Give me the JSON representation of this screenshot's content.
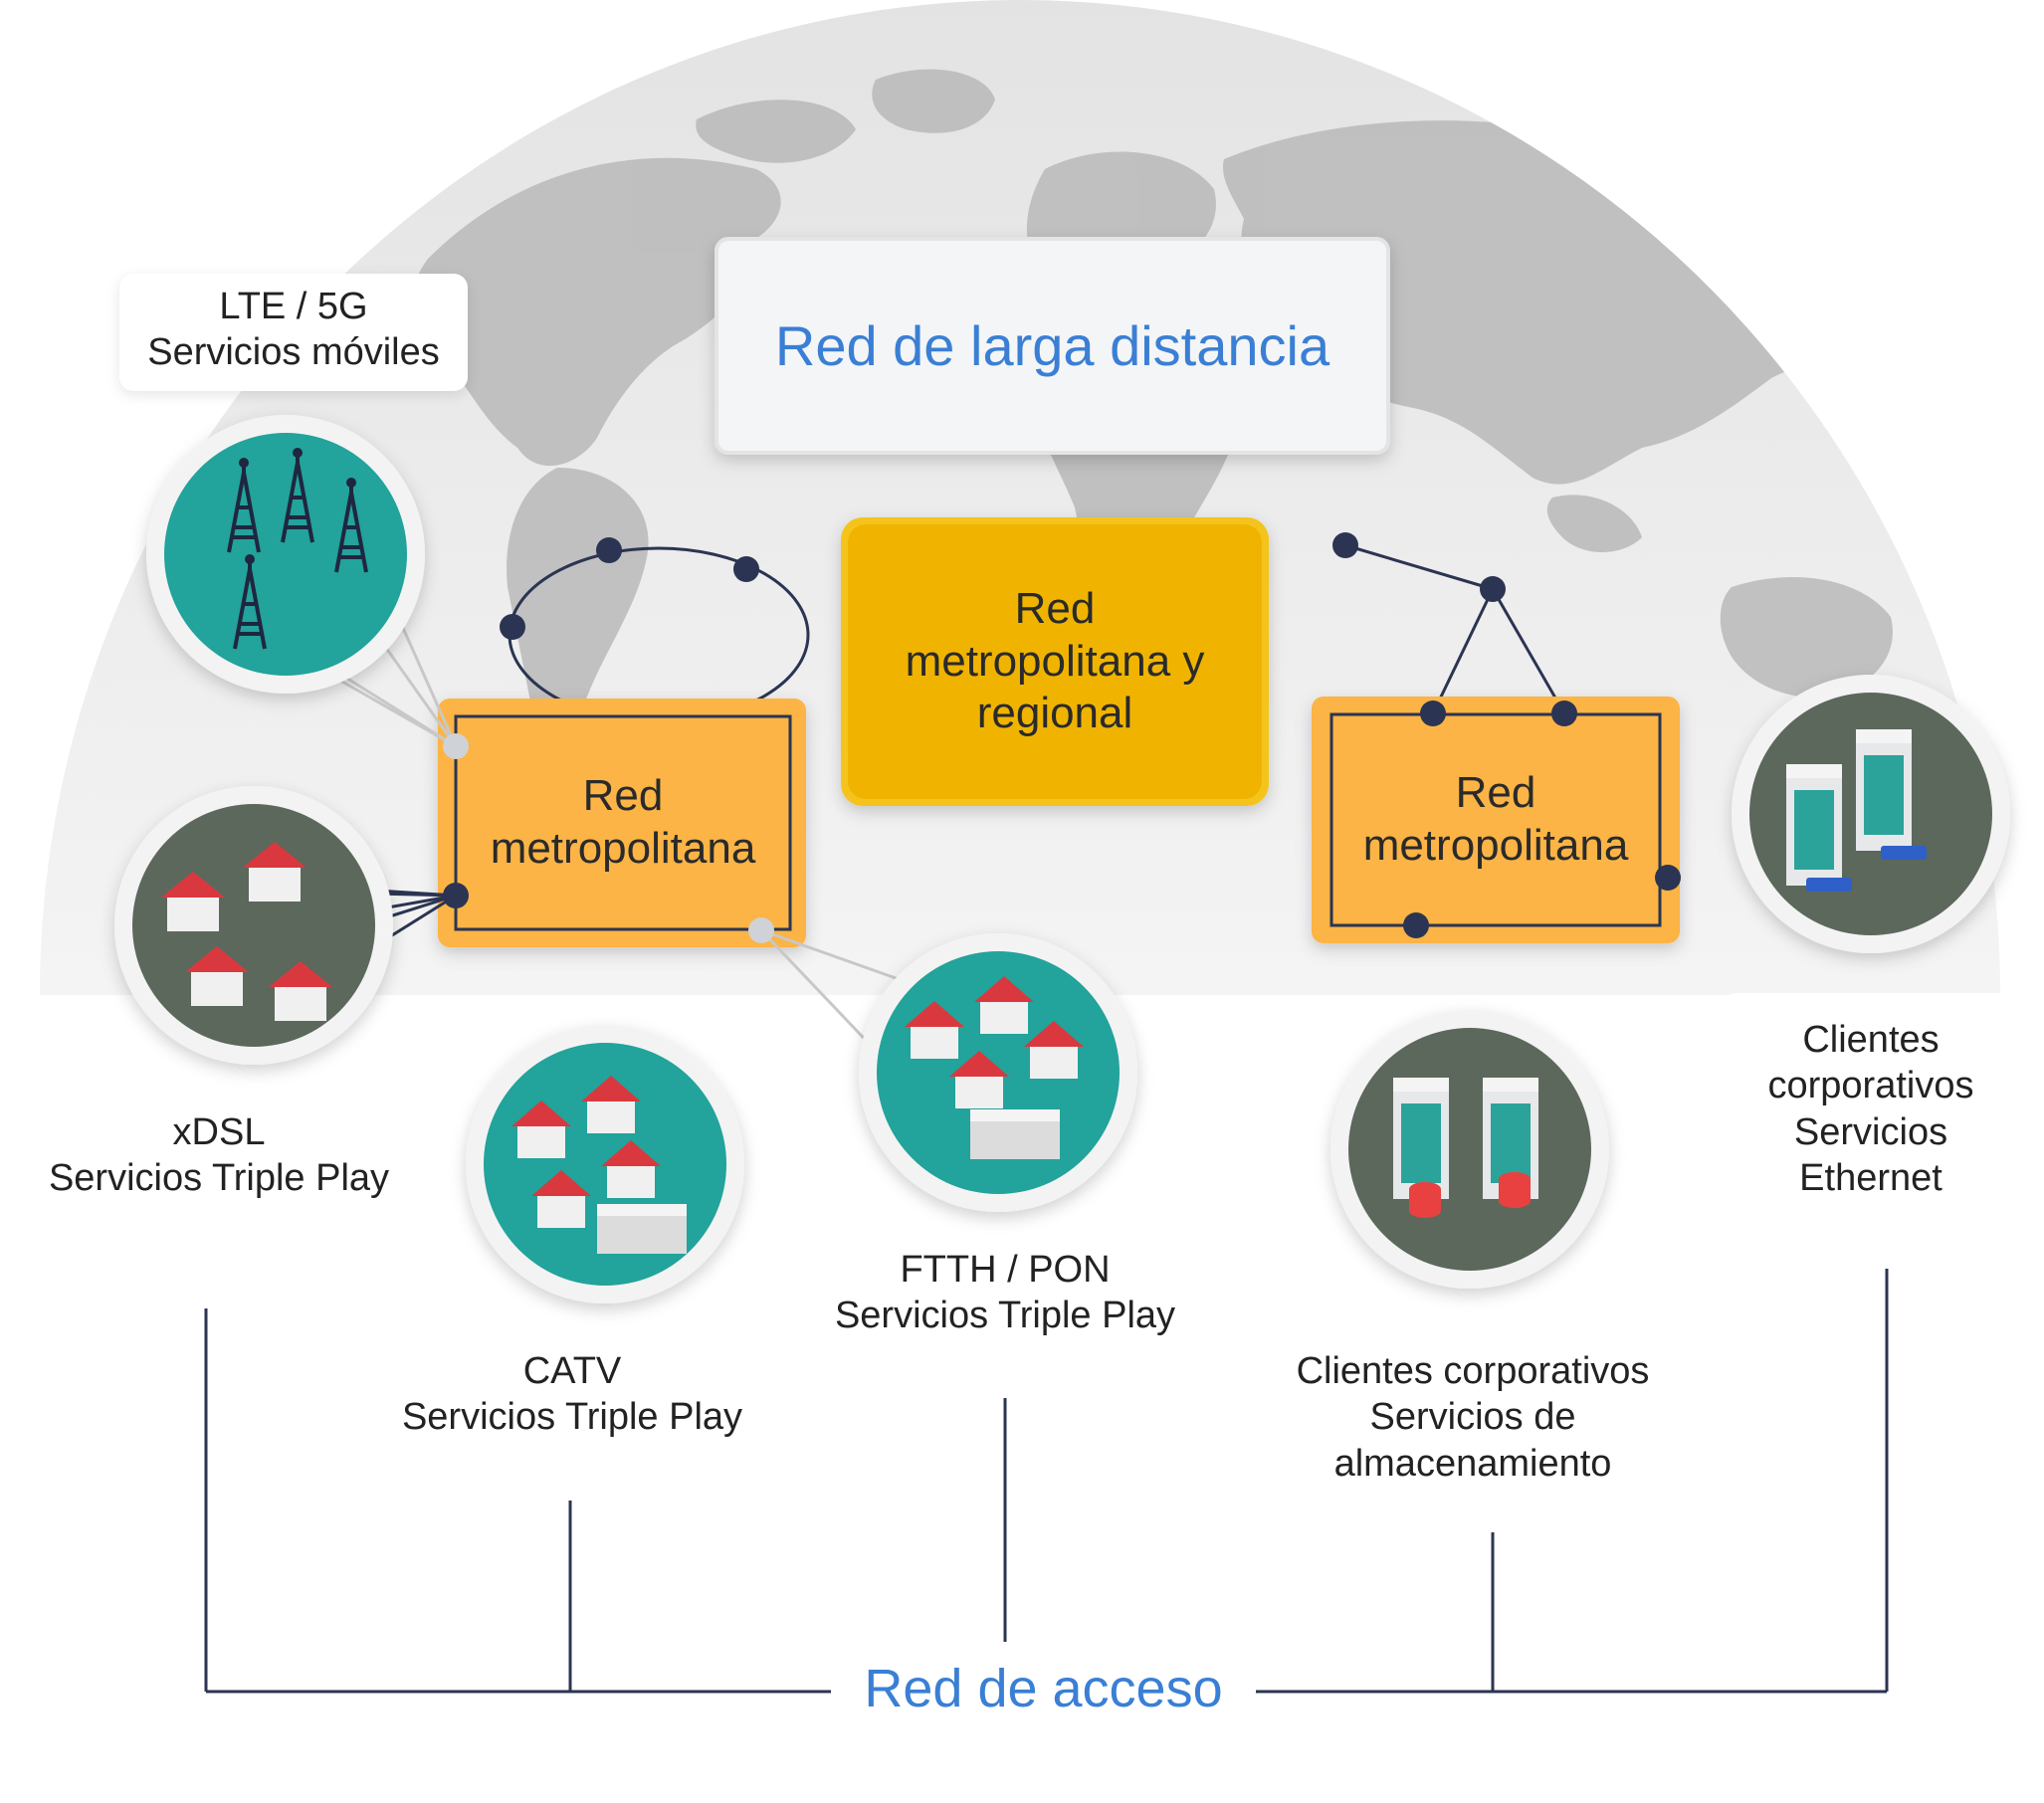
{
  "title_box": {
    "label": "Red de larga distancia"
  },
  "center_box": {
    "lines": [
      "Red",
      "metropolitana y",
      "regional"
    ]
  },
  "metro_left": {
    "lines": [
      "Red",
      "metropolitana"
    ]
  },
  "metro_right": {
    "lines": [
      "Red",
      "metropolitana"
    ]
  },
  "nodes": {
    "lte": {
      "lines": [
        "LTE / 5G",
        "Servicios móviles"
      ],
      "icon": "cell-towers-icon"
    },
    "xdsl": {
      "lines": [
        "xDSL",
        "Servicios Triple Play"
      ],
      "icon": "houses-icon"
    },
    "catv": {
      "lines": [
        "CATV",
        "Servicios Triple Play"
      ],
      "icon": "houses-building-icon"
    },
    "ftth": {
      "lines": [
        "FTTH / PON",
        "Servicios Triple Play"
      ],
      "icon": "houses-building-icon"
    },
    "storage": {
      "lines": [
        "Clientes corporativos",
        "Servicios de",
        "almacenamiento"
      ],
      "icon": "office-storage-icon"
    },
    "ethernet": {
      "lines": [
        "Clientes",
        "corporativos",
        "Servicios",
        "Ethernet"
      ],
      "icon": "office-router-icon"
    }
  },
  "access_label": "Red de acceso",
  "colors": {
    "blue_text": "#3a7fd5",
    "navy": "#2b3452",
    "orange": "#fbb444",
    "gold": "#f0b400",
    "teal": "#23a39b",
    "slate": "#5b675c",
    "house_roof": "#d9393e"
  }
}
